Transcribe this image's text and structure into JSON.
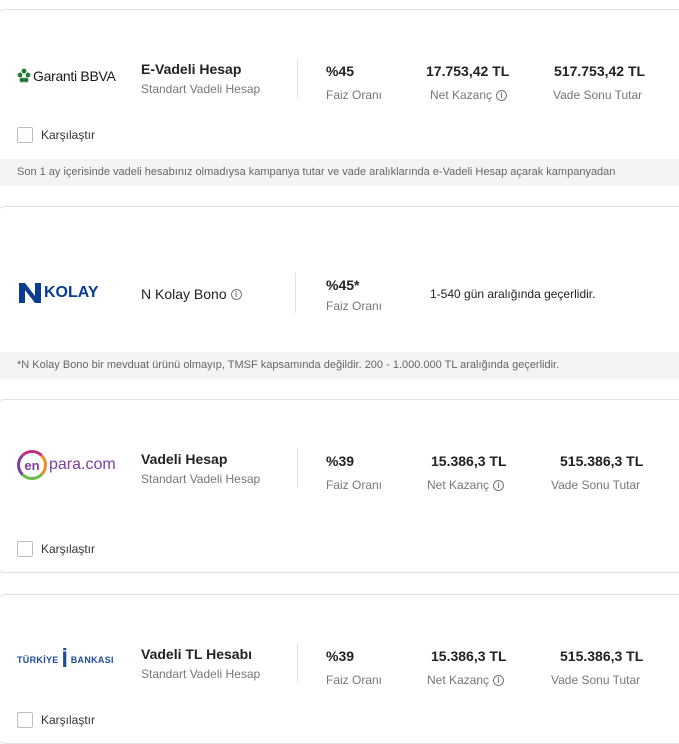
{
  "offers": [
    {
      "bank_logo_text": "Garanti BBVA",
      "product_name": "E-Vadeli Hesap",
      "product_type": "Standart Vadeli Hesap",
      "rate": "%45",
      "rate_label": "Faiz Oranı",
      "net_gain": "17.753,42 TL",
      "net_gain_label": "Net Kazanç",
      "maturity_total": "517.753,42 TL",
      "maturity_label": "Vade Sonu Tutar",
      "compare_label": "Karşılaştır",
      "note": "Son 1 ay içerisinde vadeli hesabınız olmadıysa kampanya tutar ve vade aralıklarında e-Vadeli Hesap açarak kampanyadan"
    },
    {
      "bank_logo_text": "KOLAY",
      "product_name": "N Kolay Bono",
      "rate": "%45*",
      "rate_label": "Faiz Oranı",
      "validity": "1-540 gün aralığında geçerlidir.",
      "note": "*N Kolay Bono bir mevduat ürünü olmayıp, TMSF kapsamında değildir. 200 - 1.000.000 TL aralığında geçerlidir."
    },
    {
      "bank_logo_en": "en",
      "bank_logo_rest": "para.com",
      "product_name": "Vadeli Hesap",
      "product_type": "Standart Vadeli Hesap",
      "rate": "%39",
      "rate_label": "Faiz Oranı",
      "net_gain": "15.386,3 TL",
      "net_gain_label": "Net Kazanç",
      "maturity_total": "515.386,3 TL",
      "maturity_label": "Vade Sonu Tutar",
      "compare_label": "Karşılaştır"
    },
    {
      "bank_logo_left": "TÜRKİYE",
      "bank_logo_mid": "İ",
      "bank_logo_right": "BANKASI",
      "product_name": "Vadeli TL Hesabı",
      "product_type": "Standart Vadeli Hesap",
      "rate": "%39",
      "rate_label": "Faiz Oranı",
      "net_gain": "15.386,3 TL",
      "net_gain_label": "Net Kazanç",
      "maturity_total": "515.386,3 TL",
      "maturity_label": "Vade Sonu Tutar",
      "compare_label": "Karşılaştır"
    }
  ],
  "colors": {
    "garanti_green": "#1f7a3a",
    "kolay_blue": "#0a3d91",
    "enpara_purple": "#7b3fa0",
    "isbank_blue": "#1d4b9a",
    "text_muted": "#777777"
  },
  "icons": [
    "info-icon",
    "checkbox"
  ]
}
